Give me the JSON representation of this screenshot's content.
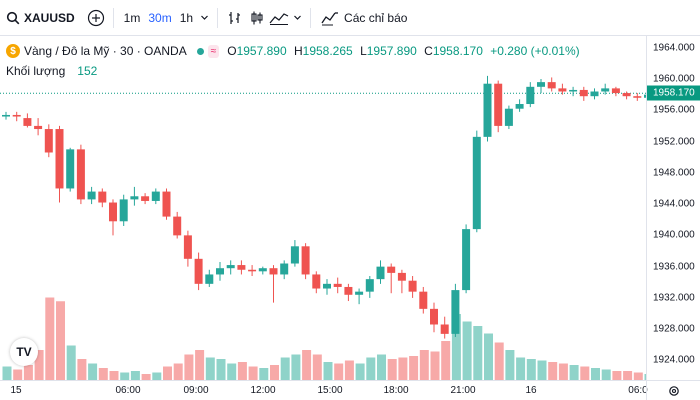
{
  "toolbar": {
    "symbol": "XAUUSD",
    "timeframes": [
      {
        "label": "1m",
        "active": false
      },
      {
        "label": "30m",
        "active": true
      },
      {
        "label": "1h",
        "active": false
      }
    ],
    "indicators_label": "Các chỉ báo"
  },
  "legend": {
    "title": "Vàng / Đô la Mỹ · 30 · OANDA",
    "badge": "≈",
    "open_key": "O",
    "open": "1957.890",
    "high_key": "H",
    "high": "1958.265",
    "low_key": "L",
    "low": "1957.890",
    "close_key": "C",
    "close": "1958.170",
    "change": "+0.280 (+0.01%)"
  },
  "volume_legend": {
    "label": "Khối lượng",
    "value": "152"
  },
  "last_price": "1958.170",
  "logo_text": "TV",
  "colors": {
    "up": "#26a69a",
    "down": "#ef5350",
    "up_vol": "#8fd3c9",
    "down_vol": "#f7a9a8",
    "accent": "#2962ff"
  },
  "chart_data": {
    "type": "candlestick",
    "ylim": [
      1921.5,
      1965.5
    ],
    "price_ticks": [
      "1964.000",
      "1960.000",
      "1956.000",
      "1952.000",
      "1948.000",
      "1944.000",
      "1940.000",
      "1936.000",
      "1932.000",
      "1928.000",
      "1924.000"
    ],
    "time_ticks": [
      "15",
      "06:00",
      "09:00",
      "12:00",
      "15:00",
      "18:00",
      "21:00",
      "16",
      "06:0"
    ],
    "candles": [
      [
        1955.2,
        1955.8,
        1954.8,
        1955.4,
        18
      ],
      [
        1955.4,
        1955.8,
        1954.6,
        1955.2,
        14
      ],
      [
        1955.0,
        1955.6,
        1953.8,
        1954.0,
        20
      ],
      [
        1954.0,
        1955.0,
        1952.8,
        1953.6,
        40
      ],
      [
        1953.6,
        1954.2,
        1950.0,
        1950.6,
        110
      ],
      [
        1953.6,
        1954.0,
        1944.2,
        1946.0,
        105
      ],
      [
        1946.0,
        1951.2,
        1945.6,
        1951.0,
        46
      ],
      [
        1951.0,
        1951.6,
        1944.0,
        1944.6,
        28
      ],
      [
        1944.6,
        1946.2,
        1944.0,
        1945.6,
        22
      ],
      [
        1945.6,
        1946.0,
        1943.6,
        1944.2,
        16
      ],
      [
        1944.2,
        1944.6,
        1940.0,
        1941.8,
        12
      ],
      [
        1941.8,
        1945.2,
        1941.2,
        1944.6,
        10
      ],
      [
        1944.6,
        1946.2,
        1943.8,
        1945.0,
        12
      ],
      [
        1945.0,
        1945.4,
        1944.0,
        1944.4,
        8
      ],
      [
        1944.4,
        1946.0,
        1944.0,
        1945.6,
        10
      ],
      [
        1945.6,
        1946.0,
        1942.0,
        1942.4,
        18
      ],
      [
        1942.4,
        1943.0,
        1939.6,
        1940.0,
        22
      ],
      [
        1940.0,
        1940.6,
        1936.0,
        1937.0,
        34
      ],
      [
        1937.0,
        1937.8,
        1933.0,
        1933.8,
        40
      ],
      [
        1933.8,
        1935.6,
        1933.4,
        1935.0,
        30
      ],
      [
        1935.0,
        1936.6,
        1934.2,
        1935.8,
        28
      ],
      [
        1935.8,
        1936.8,
        1935.0,
        1936.2,
        22
      ],
      [
        1936.2,
        1936.8,
        1935.0,
        1935.6,
        24
      ],
      [
        1935.6,
        1936.2,
        1934.8,
        1935.4,
        18
      ],
      [
        1935.4,
        1936.0,
        1935.0,
        1935.8,
        16
      ],
      [
        1935.8,
        1936.2,
        1931.4,
        1935.0,
        20
      ],
      [
        1935.0,
        1936.8,
        1934.4,
        1936.4,
        30
      ],
      [
        1936.4,
        1939.4,
        1936.0,
        1938.6,
        34
      ],
      [
        1938.6,
        1939.0,
        1934.4,
        1935.0,
        40
      ],
      [
        1935.0,
        1935.4,
        1932.6,
        1933.2,
        34
      ],
      [
        1933.2,
        1934.4,
        1932.4,
        1933.8,
        24
      ],
      [
        1933.8,
        1934.6,
        1932.6,
        1933.4,
        22
      ],
      [
        1933.4,
        1933.8,
        1931.6,
        1932.4,
        26
      ],
      [
        1932.4,
        1933.2,
        1931.2,
        1932.8,
        22
      ],
      [
        1932.8,
        1934.8,
        1932.0,
        1934.4,
        30
      ],
      [
        1934.4,
        1936.8,
        1933.8,
        1936.0,
        34
      ],
      [
        1936.0,
        1936.4,
        1932.6,
        1935.2,
        28
      ],
      [
        1935.2,
        1935.6,
        1932.6,
        1934.2,
        30
      ],
      [
        1934.2,
        1934.8,
        1932.0,
        1932.8,
        32
      ],
      [
        1932.8,
        1933.4,
        1930.0,
        1930.6,
        40
      ],
      [
        1930.6,
        1931.4,
        1927.6,
        1928.6,
        38
      ],
      [
        1928.6,
        1929.6,
        1926.8,
        1927.4,
        52
      ],
      [
        1927.4,
        1933.8,
        1927.0,
        1933.0,
        88
      ],
      [
        1933.0,
        1941.4,
        1932.6,
        1940.8,
        78
      ],
      [
        1940.8,
        1953.4,
        1940.4,
        1952.6,
        72
      ],
      [
        1952.6,
        1960.4,
        1952.0,
        1959.4,
        62
      ],
      [
        1959.4,
        1959.8,
        1953.2,
        1954.0,
        50
      ],
      [
        1954.0,
        1956.6,
        1953.6,
        1956.2,
        40
      ],
      [
        1956.2,
        1957.4,
        1955.8,
        1956.8,
        30
      ],
      [
        1956.8,
        1959.6,
        1956.4,
        1959.0,
        28
      ],
      [
        1959.0,
        1960.0,
        1958.2,
        1959.6,
        26
      ],
      [
        1959.6,
        1960.2,
        1958.4,
        1958.8,
        24
      ],
      [
        1958.8,
        1959.4,
        1958.0,
        1958.4,
        22
      ],
      [
        1958.4,
        1959.0,
        1957.8,
        1958.6,
        20
      ],
      [
        1958.6,
        1959.0,
        1957.2,
        1957.8,
        18
      ],
      [
        1957.8,
        1958.8,
        1957.4,
        1958.4,
        16
      ],
      [
        1958.4,
        1959.4,
        1958.0,
        1958.8,
        14
      ],
      [
        1958.8,
        1959.0,
        1957.8,
        1958.2,
        12
      ],
      [
        1958.2,
        1958.4,
        1957.4,
        1957.8,
        12
      ],
      [
        1957.8,
        1958.2,
        1957.2,
        1957.6,
        10
      ],
      [
        1957.6,
        1958.2,
        1957.4,
        1958.0,
        8
      ],
      [
        1957.89,
        1958.265,
        1957.89,
        1958.17,
        152
      ]
    ],
    "volume_note": "volume in candle index 4; last volume 152"
  }
}
